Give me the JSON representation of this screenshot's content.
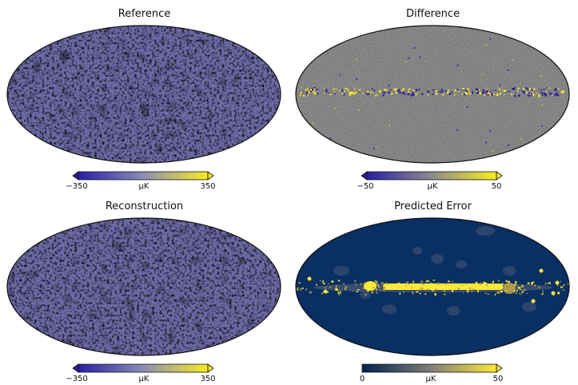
{
  "panels": [
    {
      "title": "Reference",
      "kind": "cmb",
      "colorbar": {
        "min_label": "−350",
        "unit": "μK",
        "max_label": "350",
        "extend": "both",
        "colors": [
          "#2a1fa6",
          "#8c8cb8",
          "#f7ec1e"
        ]
      }
    },
    {
      "title": "Difference",
      "kind": "diff",
      "colorbar": {
        "min_label": "−50",
        "unit": "μK",
        "max_label": "50",
        "extend": "both",
        "colors": [
          "#2a1fa6",
          "#8c8c8c",
          "#f7ec1e"
        ]
      }
    },
    {
      "title": "Reconstruction",
      "kind": "cmb",
      "colorbar": {
        "min_label": "−350",
        "unit": "μK",
        "max_label": "350",
        "extend": "both",
        "colors": [
          "#2a1fa6",
          "#8c8cb8",
          "#f7ec1e"
        ]
      }
    },
    {
      "title": "Predicted Error",
      "kind": "err",
      "colorbar": {
        "min_label": "0",
        "unit": "μK",
        "max_label": "50",
        "extend": "max",
        "colors": [
          "#00224e",
          "#7d7c78",
          "#fee838"
        ]
      }
    }
  ]
}
